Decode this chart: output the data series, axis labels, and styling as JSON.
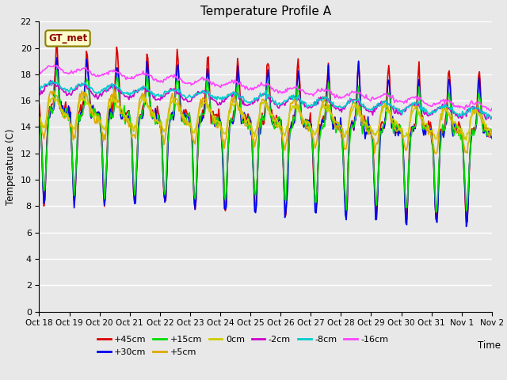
{
  "title": "Temperature Profile A",
  "xlabel": "Time",
  "ylabel": "Temperature (C)",
  "ylim": [
    0,
    22
  ],
  "yticks": [
    0,
    2,
    4,
    6,
    8,
    10,
    12,
    14,
    16,
    18,
    20,
    22
  ],
  "x_labels": [
    "Oct 18",
    "Oct 19",
    "Oct 20",
    "Oct 21",
    "Oct 22",
    "Oct 23",
    "Oct 24",
    "Oct 25",
    "Oct 26",
    "Oct 27",
    "Oct 28",
    "Oct 29",
    "Oct 30",
    "Oct 31",
    "Nov 1",
    "Nov 2"
  ],
  "legend_label": "GT_met",
  "series_labels": [
    "+45cm",
    "+30cm",
    "+15cm",
    "+5cm",
    "0cm",
    "-2cm",
    "-8cm",
    "-16cm"
  ],
  "series_colors": [
    "#dd0000",
    "#0000ee",
    "#00dd00",
    "#ddaa00",
    "#cccc00",
    "#cc00cc",
    "#00cccc",
    "#ff44ff"
  ],
  "series_widths": [
    1.2,
    1.2,
    1.2,
    1.2,
    1.2,
    1.2,
    1.2,
    1.2
  ],
  "background_color": "#e8e8e8",
  "plot_bg_color": "#e8e8e8",
  "grid_color": "#ffffff",
  "n_points": 480,
  "figwidth": 6.4,
  "figheight": 4.8,
  "dpi": 100
}
